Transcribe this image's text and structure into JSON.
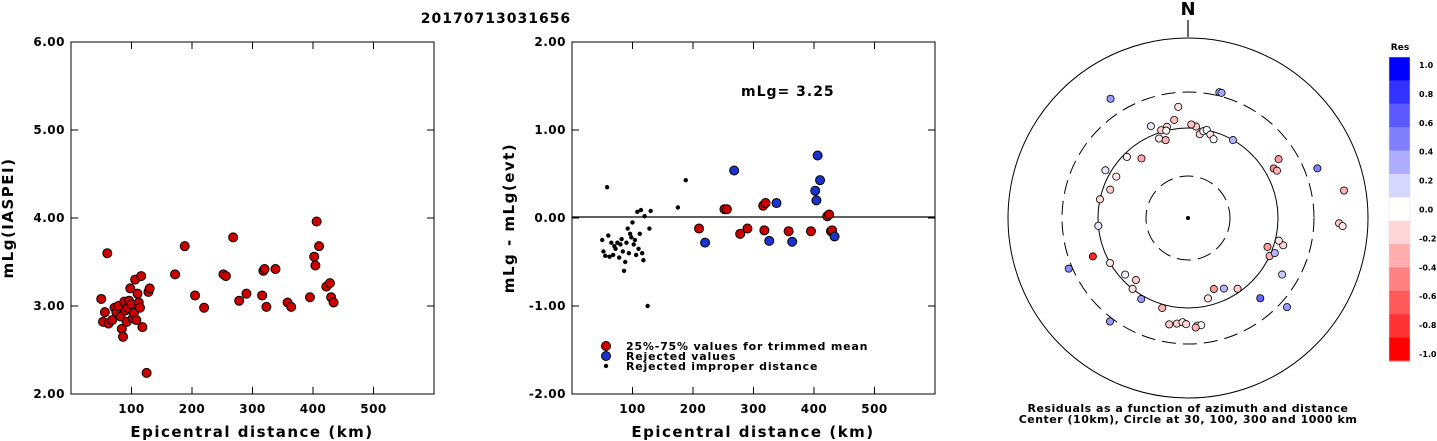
{
  "title": "20170713031656",
  "chart_data": [
    {
      "type": "scatter",
      "ylabel": "mLg(IASPEI)",
      "xlabel": "Epicentral distance (km)",
      "xlim": [
        0,
        600
      ],
      "ylim": [
        2.0,
        6.0
      ],
      "x_ticks": [
        "100",
        "200",
        "300",
        "400",
        "500"
      ],
      "y_ticks": [
        "2.00",
        "3.00",
        "4.00",
        "5.00",
        "6.00"
      ],
      "points": [
        [
          50,
          3.08
        ],
        [
          53,
          2.82
        ],
        [
          56,
          2.93
        ],
        [
          60,
          3.6
        ],
        [
          62,
          2.8
        ],
        [
          68,
          2.84
        ],
        [
          72,
          2.98
        ],
        [
          75,
          2.93
        ],
        [
          78,
          3.0
        ],
        [
          82,
          2.88
        ],
        [
          84,
          2.74
        ],
        [
          86,
          2.65
        ],
        [
          88,
          3.05
        ],
        [
          90,
          2.95
        ],
        [
          92,
          2.82
        ],
        [
          94,
          2.98
        ],
        [
          96,
          3.06
        ],
        [
          98,
          3.2
        ],
        [
          100,
          3.02
        ],
        [
          102,
          2.86
        ],
        [
          104,
          2.92
        ],
        [
          106,
          3.3
        ],
        [
          108,
          2.84
        ],
        [
          110,
          3.14
        ],
        [
          112,
          3.04
        ],
        [
          114,
          2.98
        ],
        [
          116,
          3.34
        ],
        [
          118,
          2.76
        ],
        [
          125,
          2.24
        ],
        [
          128,
          3.16
        ],
        [
          130,
          3.2
        ],
        [
          172,
          3.36
        ],
        [
          188,
          3.68
        ],
        [
          205,
          3.12
        ],
        [
          220,
          2.98
        ],
        [
          252,
          3.36
        ],
        [
          256,
          3.34
        ],
        [
          268,
          3.78
        ],
        [
          278,
          3.06
        ],
        [
          290,
          3.14
        ],
        [
          316,
          3.12
        ],
        [
          318,
          3.4
        ],
        [
          320,
          3.42
        ],
        [
          323,
          2.99
        ],
        [
          338,
          3.42
        ],
        [
          358,
          3.04
        ],
        [
          364,
          2.99
        ],
        [
          395,
          3.1
        ],
        [
          402,
          3.56
        ],
        [
          404,
          3.46
        ],
        [
          406,
          3.96
        ],
        [
          410,
          3.68
        ],
        [
          422,
          3.22
        ],
        [
          428,
          3.26
        ],
        [
          430,
          3.1
        ],
        [
          434,
          3.04
        ]
      ]
    },
    {
      "type": "scatter",
      "ylabel": "mLg - mLg(evt)",
      "xlabel": "Epicentral distance (km)",
      "xlim": [
        0,
        600
      ],
      "ylim": [
        -2.0,
        2.0
      ],
      "x_ticks": [
        "100",
        "200",
        "300",
        "400",
        "500"
      ],
      "y_ticks": [
        "-2.00",
        "-1.00",
        "0.00",
        "1.00",
        "2.00"
      ],
      "annotation": "mLg= 3.25",
      "legend": [
        "25%-75% values for trimmed mean",
        "Rejected values",
        "Rejected improper distance"
      ],
      "series": [
        {
          "name": "25%-75% values for trimmed mean",
          "color": "#cc0000",
          "points": [
            [
              210,
              -0.12
            ],
            [
              252,
              0.1
            ],
            [
              256,
              0.1
            ],
            [
              278,
              -0.18
            ],
            [
              290,
              -0.12
            ],
            [
              316,
              0.14
            ],
            [
              318,
              -0.14
            ],
            [
              320,
              0.17
            ],
            [
              358,
              -0.15
            ],
            [
              395,
              -0.15
            ],
            [
              422,
              0.02
            ],
            [
              425,
              0.04
            ],
            [
              428,
              -0.15
            ],
            [
              430,
              -0.14
            ]
          ]
        },
        {
          "name": "Rejected values",
          "color": "#1a33cc",
          "points": [
            [
              220,
              -0.28
            ],
            [
              268,
              0.54
            ],
            [
              326,
              -0.26
            ],
            [
              338,
              0.17
            ],
            [
              364,
              -0.27
            ],
            [
              402,
              0.31
            ],
            [
              404,
              0.2
            ],
            [
              406,
              0.71
            ],
            [
              410,
              0.43
            ],
            [
              434,
              -0.21
            ]
          ]
        },
        {
          "name": "Rejected improper distance",
          "color": "#000000",
          "points": [
            [
              50,
              -0.25
            ],
            [
              52,
              -0.38
            ],
            [
              55,
              -0.43
            ],
            [
              58,
              0.35
            ],
            [
              60,
              -0.2
            ],
            [
              62,
              -0.44
            ],
            [
              65,
              -0.28
            ],
            [
              68,
              -0.42
            ],
            [
              70,
              -0.32
            ],
            [
              72,
              -0.35
            ],
            [
              75,
              -0.28
            ],
            [
              78,
              -0.45
            ],
            [
              80,
              -0.3
            ],
            [
              82,
              -0.24
            ],
            [
              84,
              -0.38
            ],
            [
              86,
              -0.6
            ],
            [
              88,
              -0.5
            ],
            [
              90,
              -0.28
            ],
            [
              92,
              -0.12
            ],
            [
              94,
              -0.4
            ],
            [
              96,
              -0.18
            ],
            [
              98,
              -0.22
            ],
            [
              100,
              -0.05
            ],
            [
              102,
              -0.3
            ],
            [
              104,
              -0.25
            ],
            [
              106,
              -0.42
            ],
            [
              108,
              0.07
            ],
            [
              110,
              -0.35
            ],
            [
              112,
              -0.18
            ],
            [
              114,
              0.09
            ],
            [
              116,
              -0.4
            ],
            [
              118,
              -0.48
            ],
            [
              120,
              0.02
            ],
            [
              125,
              -1.0
            ],
            [
              128,
              -0.12
            ],
            [
              130,
              0.08
            ],
            [
              175,
              0.12
            ],
            [
              188,
              0.43
            ]
          ]
        }
      ]
    },
    {
      "type": "scatter",
      "subtype": "polar residual map",
      "north_label": "N",
      "caption": [
        "Residuals as a function of azimuth and distance",
        "Center (10km), Circle at 30, 100, 300 and 1000 km"
      ],
      "colorbar_title": "Res",
      "colorbar_ticks": [
        "1.0",
        "0.8",
        "0.6",
        "0.4",
        "0.2",
        "0.0",
        "-0.2",
        "-0.4",
        "-0.6",
        "-0.8",
        "-1.0"
      ],
      "colorbar_colors": [
        "#0000ff",
        "#3333ff",
        "#5a5aff",
        "#8080ff",
        "#adadff",
        "#d6d6ff",
        "#ffffff",
        "#ffd6d6",
        "#ffadad",
        "#ff8080",
        "#ff5a5a",
        "#ff3333",
        "#ff0000"
      ],
      "rings_km": [
        30,
        100,
        300,
        1000
      ],
      "points_polar": [
        [
          355,
          0.62,
          -0.1
        ],
        [
          352,
          0.55,
          -0.25
        ],
        [
          347,
          0.52,
          -0.15
        ],
        [
          343,
          0.51,
          -0.2
        ],
        [
          340,
          0.47,
          -0.1
        ],
        [
          346,
          0.5,
          -0.05
        ],
        [
          338,
          0.55,
          0.1
        ],
        [
          344,
          0.45,
          -0.3
        ],
        [
          8,
          0.47,
          -0.15
        ],
        [
          10,
          0.49,
          0.05
        ],
        [
          5,
          0.51,
          -0.2
        ],
        [
          2,
          0.52,
          -0.25
        ],
        [
          12,
          0.5,
          0.0
        ],
        [
          15,
          0.48,
          -0.1
        ],
        [
          18,
          0.46,
          0.0
        ],
        [
          30,
          0.5,
          0.3
        ],
        [
          14,
          0.72,
          0.3
        ],
        [
          15,
          0.72,
          0.35
        ],
        [
          327,
          0.79,
          0.4
        ],
        [
          322,
          0.42,
          -0.35
        ],
        [
          315,
          0.48,
          -0.05
        ],
        [
          300,
          0.46,
          -0.1
        ],
        [
          290,
          0.46,
          -0.2
        ],
        [
          282,
          0.5,
          -0.15
        ],
        [
          265,
          0.5,
          0.1
        ],
        [
          248,
          0.57,
          -0.85
        ],
        [
          247,
          0.72,
          0.45
        ],
        [
          300,
          0.53,
          0.1
        ],
        [
          240,
          0.5,
          -0.1
        ],
        [
          228,
          0.47,
          0.05
        ],
        [
          220,
          0.45,
          -0.2
        ],
        [
          218,
          0.5,
          -0.1
        ],
        [
          217,
          0.72,
          0.4
        ],
        [
          210,
          0.52,
          0.4
        ],
        [
          196,
          0.52,
          -0.3
        ],
        [
          190,
          0.6,
          -0.2
        ],
        [
          186,
          0.59,
          -0.2
        ],
        [
          183,
          0.58,
          -0.1
        ],
        [
          181,
          0.59,
          -0.15
        ],
        [
          175,
          0.6,
          0.0
        ],
        [
          173,
          0.6,
          0.05
        ],
        [
          176,
          0.61,
          -0.3
        ],
        [
          166,
          0.46,
          -0.1
        ],
        [
          160,
          0.42,
          -0.4
        ],
        [
          153,
          0.44,
          0.3
        ],
        [
          145,
          0.48,
          -0.2
        ],
        [
          138,
          0.6,
          0.6
        ],
        [
          132,
          0.74,
          0.4
        ],
        [
          121,
          0.61,
          0.2
        ],
        [
          115,
          0.5,
          -0.3
        ],
        [
          110,
          0.47,
          -0.4
        ],
        [
          112,
          0.52,
          0.3
        ],
        [
          106,
          0.55,
          -0.15
        ],
        [
          104,
          0.52,
          -0.1
        ],
        [
          92,
          0.84,
          -0.2
        ],
        [
          93,
          0.86,
          -0.1
        ],
        [
          80,
          0.88,
          -0.3
        ],
        [
          69,
          0.77,
          0.5
        ],
        [
          60,
          0.55,
          -0.45
        ],
        [
          62,
          0.56,
          -0.3
        ],
        [
          57,
          0.6,
          -0.4
        ]
      ]
    }
  ]
}
